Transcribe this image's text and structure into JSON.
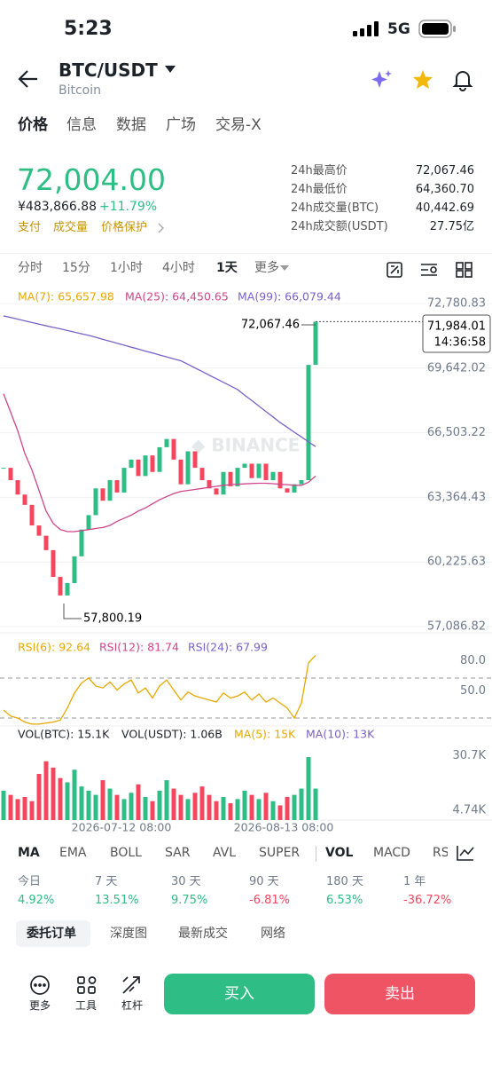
{
  "status": {
    "time": "5:23",
    "network": "5G"
  },
  "header": {
    "pair": "BTC/USDT",
    "name": "Bitcoin"
  },
  "tabs": [
    "价格",
    "信息",
    "数据",
    "广场",
    "交易-X"
  ],
  "price": {
    "last": "72,004.00",
    "cny": "¥483,866.88",
    "change": "+11.79%",
    "links": [
      "支付",
      "成交量",
      "价格保护"
    ]
  },
  "stats": [
    {
      "label": "24h最高价",
      "value": "72,067.46"
    },
    {
      "label": "24h最低价",
      "value": "64,360.70"
    },
    {
      "label": "24h成交量(BTC)",
      "value": "40,442.69"
    },
    {
      "label": "24h成交额(USDT)",
      "value": "27.75亿"
    }
  ],
  "intervals": [
    "分时",
    "15分",
    "1小时",
    "4小时",
    "1天",
    "更多"
  ],
  "chart_data": {
    "type": "candlestick",
    "ma_legend": [
      "MA(7): 65,657.98",
      "MA(25): 64,450.65",
      "MA(99): 66,079.44"
    ],
    "ylim": [
      57086.82,
      72780.83
    ],
    "yticks": [
      {
        "value": 72780.83,
        "label": "72,780.83"
      },
      {
        "value": 69642.02,
        "label": "69,642.02"
      },
      {
        "value": 66503.22,
        "label": "66,503.22"
      },
      {
        "value": 63364.43,
        "label": "63,364.43"
      },
      {
        "value": 60225.63,
        "label": "60,225.63"
      },
      {
        "value": 57086.82,
        "label": "57,086.82"
      }
    ],
    "closes": [
      64800,
      64200,
      63500,
      63000,
      62000,
      61500,
      60800,
      59500,
      58600,
      59200,
      60500,
      61800,
      62500,
      63800,
      63200,
      64200,
      63600,
      64800,
      65200,
      64400,
      65400,
      64600,
      65800,
      66200,
      65200,
      64000,
      65600,
      64800,
      64200,
      63800,
      63500,
      64600,
      63900,
      64800,
      65000,
      64300,
      65000,
      64200,
      64600,
      63800,
      63600,
      64000,
      64200,
      69800,
      71900
    ],
    "ma25": [
      68400,
      67500,
      66600,
      65500,
      64700,
      63700,
      62700,
      62100,
      61800,
      61700,
      61700,
      61750,
      61800,
      61850,
      61900,
      62000,
      62200,
      62350,
      62500,
      62700,
      62850,
      63050,
      63250,
      63400,
      63550,
      63650,
      63700,
      63750,
      63800,
      63850,
      63900,
      63950,
      63980,
      64000,
      64020,
      64040,
      64050,
      64050,
      64030,
      64000,
      63980,
      63950,
      63950,
      64100,
      64400
    ],
    "ma99": [
      72180,
      72100,
      72020,
      71940,
      71860,
      71780,
      71700,
      71620,
      71550,
      71470,
      71390,
      71310,
      71233,
      71140,
      71040,
      70950,
      70850,
      70760,
      70660,
      70570,
      70470,
      70380,
      70280,
      70190,
      70090,
      70000,
      69830,
      69650,
      69480,
      69300,
      69130,
      68950,
      68780,
      68600,
      68330,
      68070,
      67800,
      67530,
      67270,
      67000,
      66770,
      66530,
      66300,
      66060,
      65830
    ],
    "high_label": "72,067.46",
    "low_label": "57,800.19",
    "last_price_label": "71,984.01",
    "countdown": "14:36:58",
    "rsi": {
      "legend": [
        "RSI(6): 92.64",
        "RSI(12): 81.74",
        "RSI(24): 67.99"
      ],
      "ylim": [
        0,
        100
      ],
      "yticks": [
        {
          "value": 80,
          "label": "80.0"
        },
        {
          "value": 50,
          "label": "50.0"
        }
      ],
      "values": [
        38,
        32,
        30,
        26,
        24,
        24,
        25,
        26,
        28,
        40,
        55,
        65,
        70,
        62,
        60,
        66,
        58,
        64,
        68,
        55,
        60,
        50,
        62,
        68,
        58,
        48,
        56,
        52,
        50,
        48,
        46,
        55,
        50,
        52,
        56,
        48,
        54,
        46,
        50,
        45,
        40,
        30,
        45,
        85,
        92.64
      ]
    },
    "volume": {
      "legend": [
        "VOL(BTC): 15.1K",
        "VOL(USDT): 1.06B",
        "MA(5): 15K",
        "MA(10): 13K"
      ],
      "ylim": [
        0,
        33
      ],
      "yticks": [
        {
          "value": 30.7,
          "label": "30.7K"
        },
        {
          "value": 4.74,
          "label": "4.74K"
        }
      ],
      "values": [
        14,
        12,
        10,
        11,
        9,
        22,
        28,
        25,
        20,
        18,
        24,
        16,
        14,
        12,
        19,
        15,
        12,
        10,
        13,
        17,
        11,
        9,
        14,
        19,
        15,
        12,
        10,
        13,
        16,
        12,
        9,
        11,
        8,
        10,
        14,
        12,
        10,
        13,
        9,
        7,
        11,
        12,
        15,
        30,
        15
      ]
    },
    "x_labels": [
      "2026-07-12 08:00",
      "2026-08-13 08:00"
    ]
  },
  "indicators": [
    "MA",
    "EMA",
    "BOLL",
    "SAR",
    "AVL",
    "SUPER",
    "VOL",
    "MACD",
    "RS"
  ],
  "performance": [
    {
      "period": "今日",
      "value": "4.92%"
    },
    {
      "period": "7 天",
      "value": "13.51%"
    },
    {
      "period": "30 天",
      "value": "9.75%"
    },
    {
      "period": "90 天",
      "value": "-6.81%"
    },
    {
      "period": "180 天",
      "value": "6.53%"
    },
    {
      "period": "1 年",
      "value": "-36.72%"
    }
  ],
  "order_tabs": [
    "委托订单",
    "深度图",
    "最新成交",
    "网络"
  ],
  "toolbar": [
    "更多",
    "工具",
    "杠杆"
  ],
  "buy": "买入",
  "sell": "卖出"
}
